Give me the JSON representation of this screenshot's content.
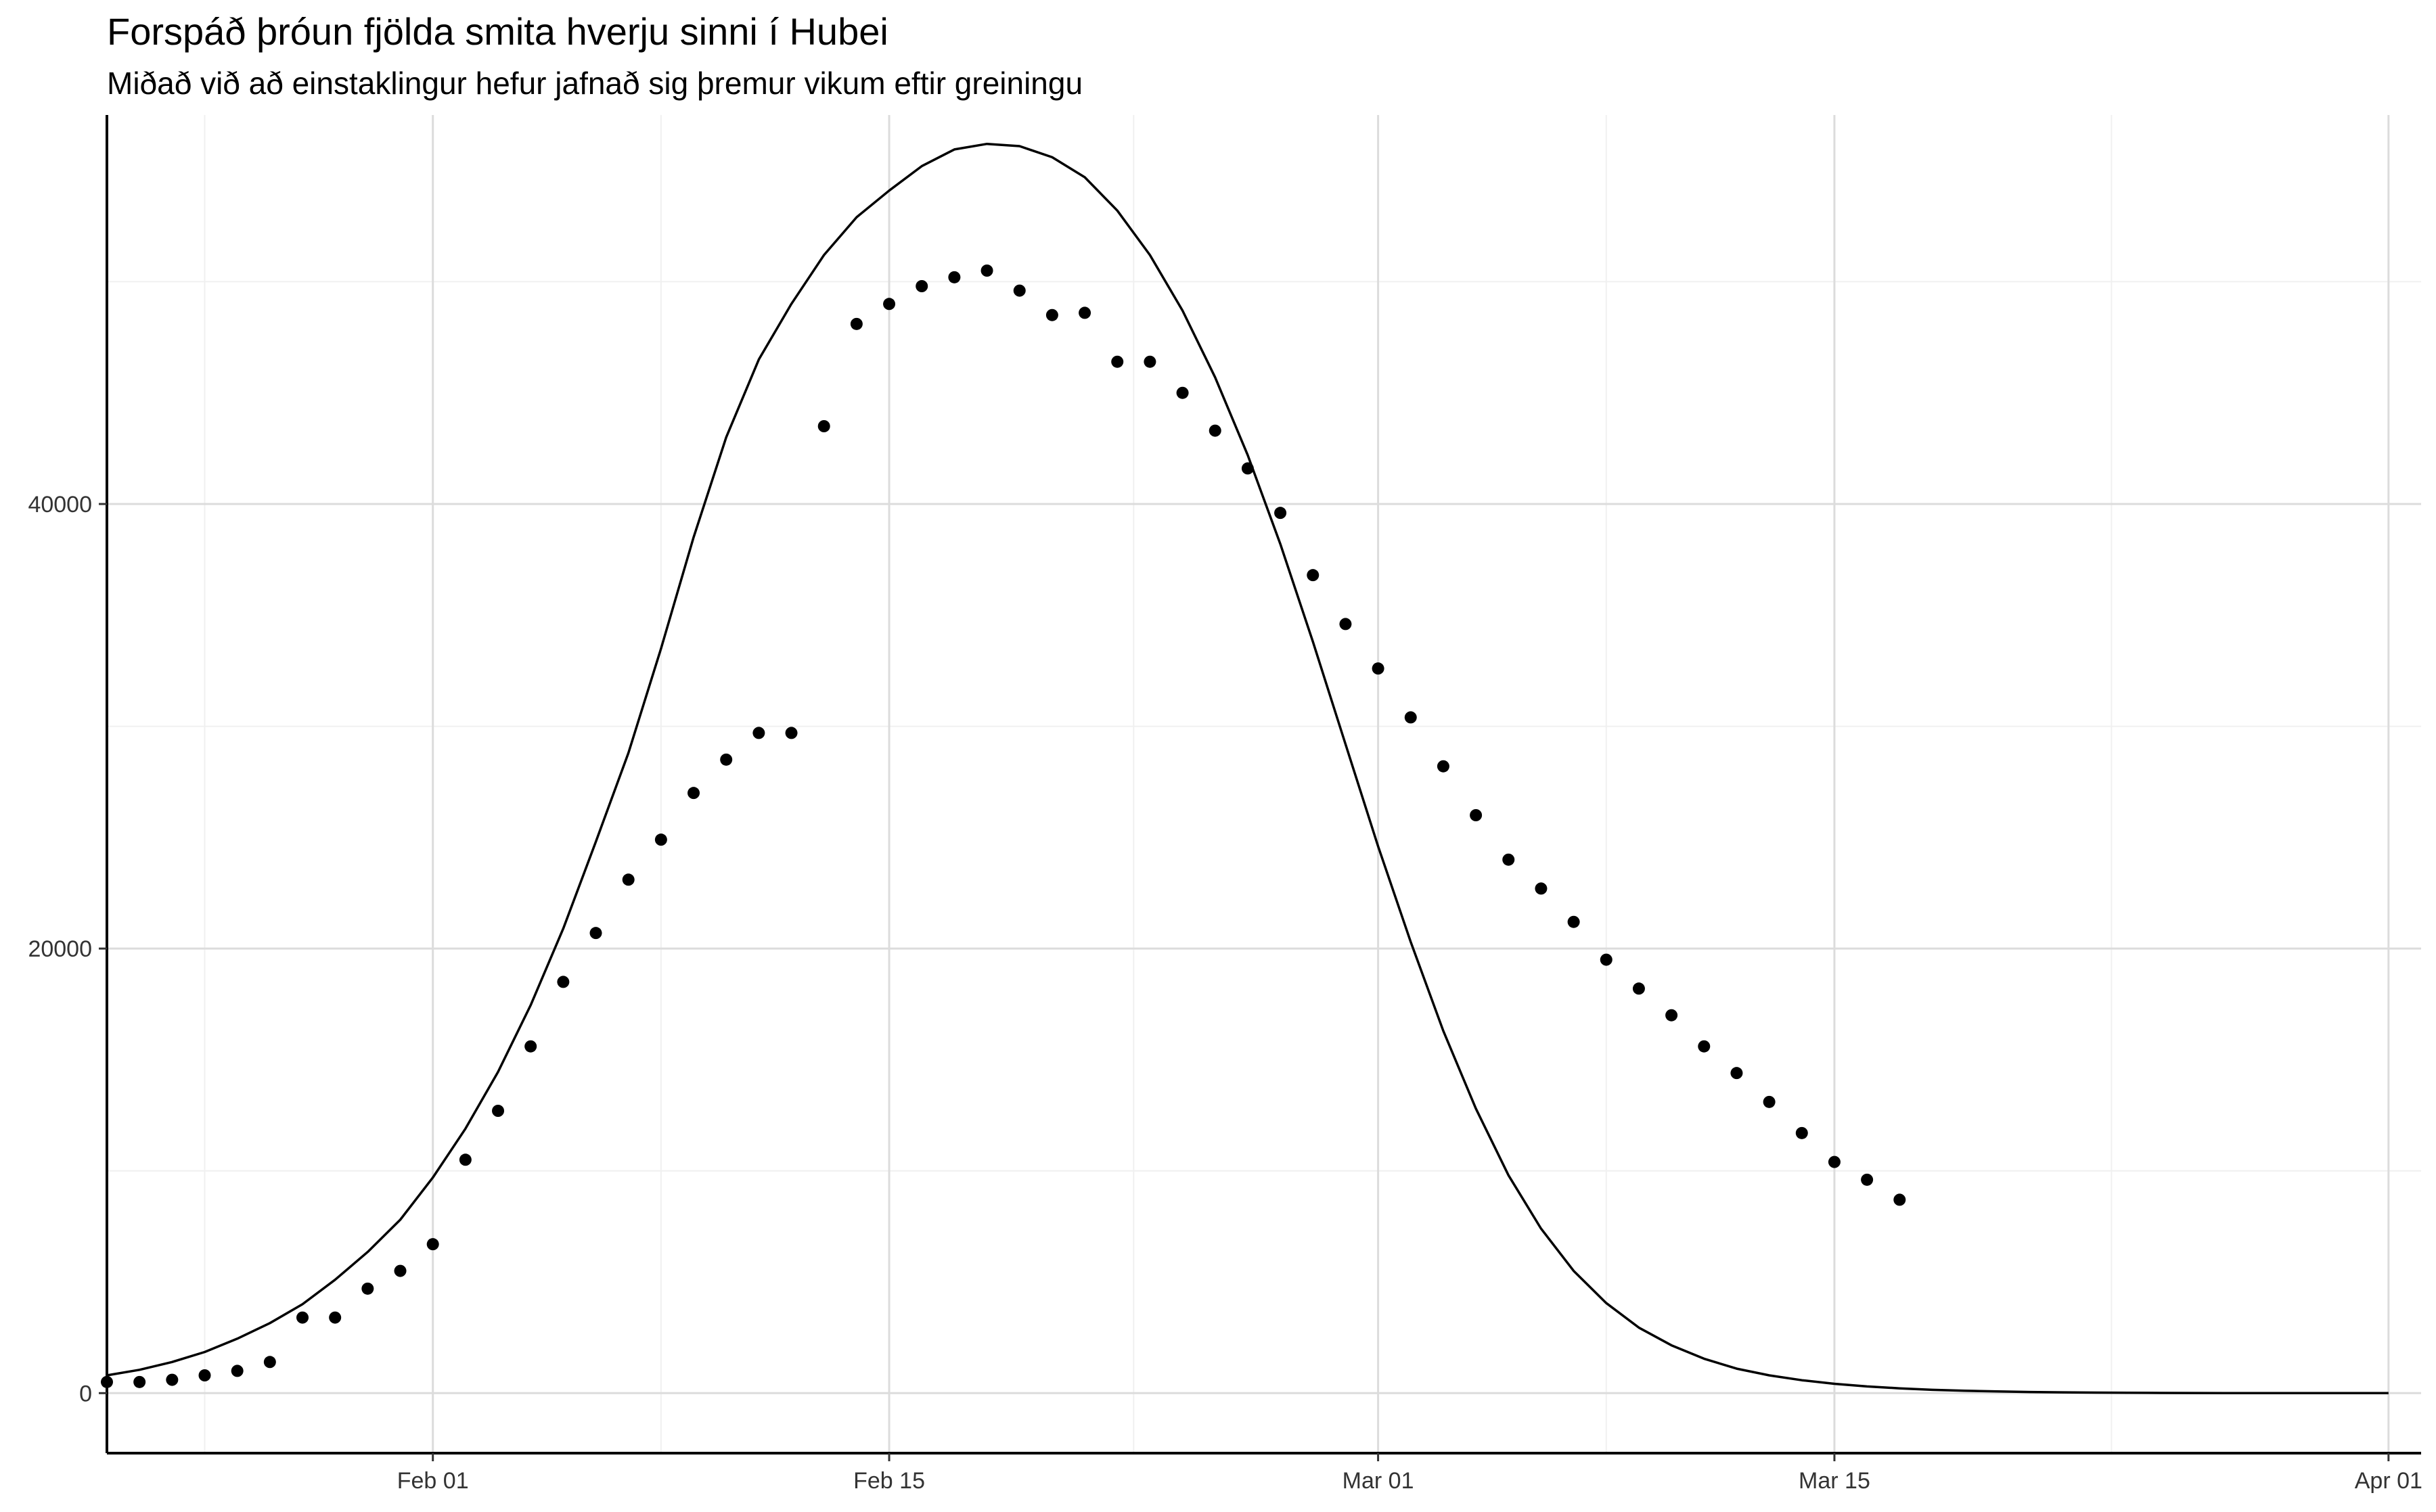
{
  "chart_data": {
    "type": "line",
    "title": "Forspáð þróun fjölda smita hverju sinni í Hubei",
    "subtitle": "Miðað við að einstaklingur hefur jafnað sig þremur vikum eftir greiningu",
    "xlabel": "",
    "ylabel": "",
    "grid": true,
    "xlim": [
      "2020-01-22",
      "2020-04-02"
    ],
    "ylim": [
      -2700,
      57500
    ],
    "x_ticks": [
      {
        "date": "2020-02-01",
        "label": "Feb 01"
      },
      {
        "date": "2020-02-15",
        "label": "Feb 15"
      },
      {
        "date": "2020-03-01",
        "label": "Mar 01"
      },
      {
        "date": "2020-03-15",
        "label": "Mar 15"
      },
      {
        "date": "2020-04-01",
        "label": "Apr 01"
      }
    ],
    "y_ticks": [
      0,
      20000,
      40000
    ],
    "series": [
      {
        "kind": "line",
        "x_start": "2020-01-22",
        "x_step_days": 1,
        "values": [
          800,
          1050,
          1400,
          1850,
          2450,
          3150,
          4000,
          5100,
          6350,
          7800,
          9700,
          11900,
          14450,
          17450,
          20900,
          24800,
          28800,
          33500,
          38500,
          43000,
          46500,
          49000,
          51200,
          52900,
          54100,
          55200,
          55950,
          56200,
          56100,
          55600,
          54700,
          53200,
          51200,
          48700,
          45700,
          42200,
          38200,
          33800,
          29200,
          24600,
          20300,
          16300,
          12800,
          9800,
          7400,
          5500,
          4050,
          2950,
          2150,
          1550,
          1100,
          800,
          580,
          420,
          300,
          215,
          150,
          108,
          76,
          52,
          36,
          24,
          15,
          10,
          6,
          3,
          0,
          0,
          0,
          0,
          0
        ]
      },
      {
        "kind": "points",
        "x_start": "2020-01-22",
        "x_step_days": 1,
        "values": [
          500,
          500,
          600,
          800,
          1000,
          1400,
          3400,
          3400,
          4700,
          5500,
          6700,
          10500,
          12700,
          15600,
          18500,
          20700,
          23100,
          24900,
          27000,
          28500,
          29700,
          29700,
          43500,
          48100,
          49000,
          49800,
          50200,
          50500,
          49600,
          48500,
          48600,
          46400,
          46400,
          45000,
          43300,
          41600,
          39600,
          36800,
          34600,
          32600,
          30400,
          28200,
          26000,
          24000,
          22700,
          21200,
          19500,
          18200,
          17000,
          15600,
          14400,
          13100,
          11700,
          10400,
          9600,
          8700
        ]
      }
    ]
  }
}
